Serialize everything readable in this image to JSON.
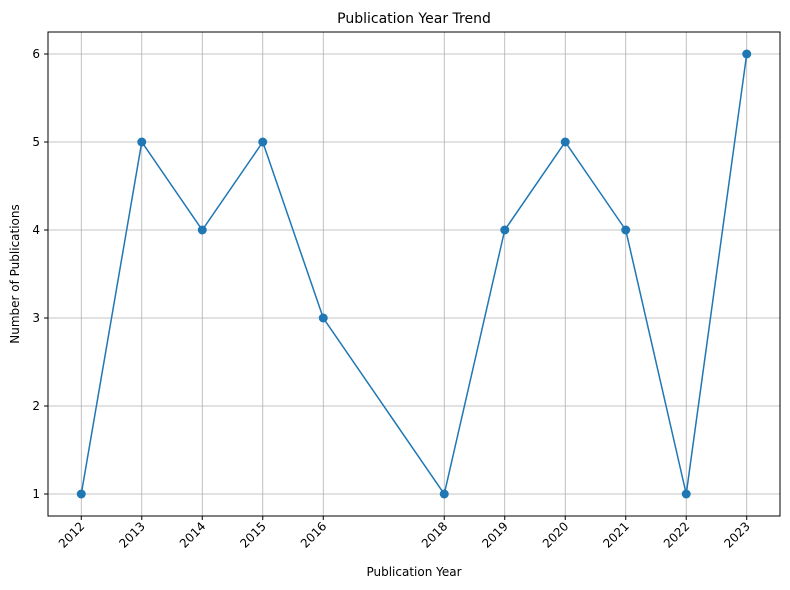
{
  "chart_data": {
    "type": "line",
    "title": "Publication Year Trend",
    "xlabel": "Publication Year",
    "ylabel": "Number of Publications",
    "x": [
      2012,
      2013,
      2014,
      2015,
      2016,
      2018,
      2019,
      2020,
      2021,
      2022,
      2023
    ],
    "series": [
      {
        "values": [
          1,
          5,
          4,
          5,
          3,
          1,
          4,
          5,
          4,
          1,
          6
        ]
      }
    ],
    "x_ticks": [
      "2012",
      "2013",
      "2014",
      "2015",
      "2016",
      "2018",
      "2019",
      "2020",
      "2021",
      "2022",
      "2023"
    ],
    "y_ticks": [
      "1",
      "2",
      "3",
      "4",
      "5",
      "6"
    ],
    "xlim": [
      2011.45,
      2023.55
    ],
    "ylim": [
      0.75,
      6.25
    ],
    "grid": true,
    "line_color": "#1f77b4",
    "marker": "circle",
    "x_tick_rotation": "45 degrees"
  }
}
